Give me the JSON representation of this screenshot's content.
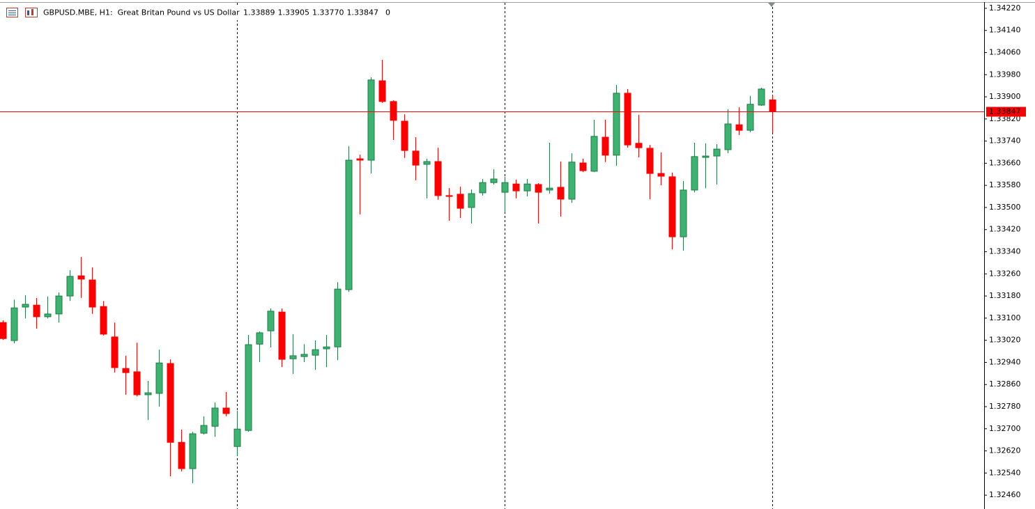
{
  "chart_data": {
    "type": "candlestick",
    "title": "GBPUSD.MBE, H1:  Great Britan Pound vs US Dollar",
    "header_values": [
      1.33889,
      1.33905,
      {
        "value": 1.3377,
        "label": "1.33770"
      },
      1.33847,
      0
    ],
    "up_color": "#3cb371",
    "up_edge_color": "#1f7a45",
    "down_color": "#ff0000",
    "last_price": 1.33847,
    "last_price_color": "#ff0000",
    "ylim": [
      1.3241,
      1.3425
    ],
    "yticks": [
      {
        "value": 1.3422,
        "label": "1.34220"
      },
      {
        "value": 1.3414,
        "label": "1.34140"
      },
      {
        "value": 1.3406,
        "label": "1.34060"
      },
      {
        "value": 1.3398,
        "label": "1.33980"
      },
      {
        "value": 1.339,
        "label": "1.33900"
      },
      {
        "value": 1.3382,
        "label": "1.33820"
      },
      {
        "value": 1.3374,
        "label": "1.33740"
      },
      {
        "value": 1.3366,
        "label": "1.33660"
      },
      {
        "value": 1.3358,
        "label": "1.33580"
      },
      {
        "value": 1.335,
        "label": "1.33500"
      },
      {
        "value": 1.3342,
        "label": "1.33420"
      },
      {
        "value": 1.3334,
        "label": "1.33340"
      },
      {
        "value": 1.3326,
        "label": "1.33260"
      },
      {
        "value": 1.3318,
        "label": "1.33180"
      },
      {
        "value": 1.331,
        "label": "1.33100"
      },
      {
        "value": 1.3302,
        "label": "1.33020"
      },
      {
        "value": 1.3294,
        "label": "1.32940"
      },
      {
        "value": 1.3286,
        "label": "1.32860"
      },
      {
        "value": 1.3278,
        "label": "1.32780"
      },
      {
        "value": 1.327,
        "label": "1.32700"
      },
      {
        "value": 1.3262,
        "label": "1.32620"
      },
      {
        "value": 1.3254,
        "label": "1.32540"
      },
      {
        "value": 1.3246,
        "label": "1.32460"
      }
    ],
    "open": [
      1.33084,
      1.33019,
      1.3314,
      1.33147,
      1.33105,
      1.33115,
      1.3318,
      1.33253,
      1.33238,
      1.33142,
      1.33032,
      1.32918,
      1.32906,
      1.32823,
      1.32828,
      1.32936,
      1.32651,
      1.32556,
      1.32684,
      1.32709,
      1.32775,
      1.32636,
      1.32694,
      1.33006,
      1.33054,
      1.33122,
      1.32953,
      1.32961,
      1.32966,
      1.32989,
      1.32996,
      1.33203,
      1.33676,
      1.33671,
      1.33958,
      1.33883,
      1.33812,
      1.33704,
      1.33656,
      1.33666,
      1.33543,
      1.33548,
      1.335,
      1.33553,
      1.3359,
      1.33555,
      1.33585,
      1.3356,
      1.33583,
      1.33563,
      1.33573,
      1.3353,
      1.33661,
      1.33631,
      1.33754,
      1.33689,
      1.33913,
      1.33732,
      1.33714,
      1.33623,
      1.33611,
      1.33394,
      1.33563,
      1.33681,
      1.33686,
      1.33709,
      1.33799,
      1.33779,
      1.3387,
      1.33889
    ],
    "high": [
      1.33092,
      1.33167,
      1.33183,
      1.33173,
      1.33178,
      1.33193,
      1.33273,
      1.33321,
      1.33283,
      1.33162,
      1.33084,
      1.32964,
      1.33011,
      1.32873,
      1.32986,
      1.32951,
      1.32697,
      1.32689,
      1.32745,
      1.32795,
      1.32833,
      1.32765,
      1.33039,
      1.33052,
      1.33135,
      1.33135,
      1.33042,
      1.33006,
      1.33019,
      1.33039,
      1.3323,
      1.33721,
      1.33691,
      1.33971,
      1.34034,
      1.33888,
      1.33837,
      1.33754,
      1.33676,
      1.33716,
      1.3357,
      1.33575,
      1.33565,
      1.33603,
      1.33638,
      1.33611,
      1.33601,
      1.33603,
      1.33588,
      1.33734,
      1.33666,
      1.33696,
      1.33676,
      1.33817,
      1.33817,
      1.33943,
      1.33928,
      1.33835,
      1.33726,
      1.33699,
      1.33626,
      1.33596,
      1.33734,
      1.33732,
      1.33729,
      1.33855,
      1.33862,
      1.33903,
      1.33933,
      1.33905
    ],
    "low": [
      1.33021,
      1.33009,
      1.33099,
      1.33062,
      1.33099,
      1.33084,
      1.33162,
      1.33173,
      1.33115,
      1.33037,
      1.32903,
      1.32823,
      1.32817,
      1.32732,
      1.3278,
      1.32528,
      1.32546,
      1.32503,
      1.32679,
      1.32671,
      1.32745,
      1.32601,
      1.32689,
      1.32941,
      1.32994,
      1.32923,
      1.32898,
      1.32941,
      1.32913,
      1.32923,
      1.32948,
      1.33195,
      1.33475,
      1.33623,
      1.33878,
      1.33744,
      1.33679,
      1.33598,
      1.33533,
      1.33528,
      1.33452,
      1.33462,
      1.33442,
      1.33543,
      1.33583,
      1.33482,
      1.33533,
      1.3354,
      1.33442,
      1.3355,
      1.33467,
      1.33517,
      1.33628,
      1.33628,
      1.33664,
      1.33651,
      1.33716,
      1.33681,
      1.3353,
      1.3358,
      1.33349,
      1.33344,
      1.33555,
      1.3357,
      1.33583,
      1.33696,
      1.33762,
      1.33772,
      1.33867,
      1.3377
    ],
    "close": [
      1.33026,
      1.33137,
      1.3315,
      1.33105,
      1.33115,
      1.3318,
      1.33251,
      1.33241,
      1.3314,
      1.33042,
      1.32921,
      1.32903,
      1.32823,
      1.3283,
      1.32938,
      1.32651,
      1.32556,
      1.32682,
      1.32712,
      1.32775,
      1.32755,
      1.32699,
      1.33004,
      1.33047,
      1.33125,
      1.32951,
      1.32964,
      1.32969,
      1.32986,
      1.32996,
      1.33205,
      1.33671,
      1.33671,
      1.33961,
      1.33883,
      1.33815,
      1.33706,
      1.33653,
      1.33666,
      1.33543,
      1.3354,
      1.33497,
      1.3355,
      1.3359,
      1.33603,
      1.3359,
      1.3356,
      1.33585,
      1.33555,
      1.3357,
      1.3353,
      1.33664,
      1.33633,
      1.33757,
      1.33689,
      1.33913,
      1.33726,
      1.33716,
      1.33623,
      1.33613,
      1.33394,
      1.33563,
      1.33684,
      1.33686,
      1.33711,
      1.33802,
      1.33779,
      1.33873,
      1.33928,
      1.33847
    ]
  }
}
